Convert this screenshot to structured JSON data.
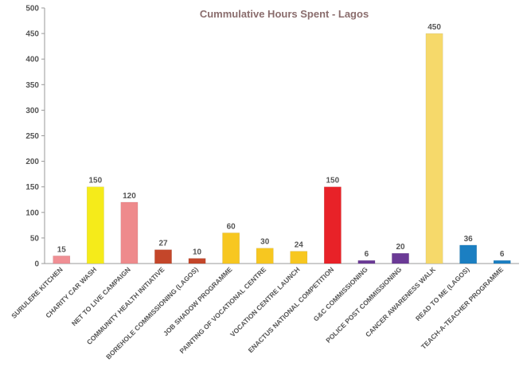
{
  "chart_data": {
    "type": "bar",
    "title": "Cummulative Hours Spent - Lagos",
    "xlabel": "",
    "ylabel": "",
    "ylim": [
      0,
      500
    ],
    "yticks": [
      0,
      50,
      100,
      150,
      200,
      250,
      300,
      350,
      400,
      450,
      500
    ],
    "grid": false,
    "legend": "none",
    "categories": [
      "SURULERE KITCHEN",
      "CHARITY CAR WASH",
      "NET TO LIVE CAMPAIGN",
      "COMMUNITY HEALTH INITIATIVE",
      "BOREHOLE COMMISSIONING (LAGOS)",
      "JOB SHADOW PROGRAMME",
      "PAINTING OF VOCATIONAL CENTRE",
      "VOCATION CENTRE LAUNCH",
      "ENACTUS NATIONAL COMPETITION",
      "G&C COMMISSIONING",
      "POLICE POST COMMISSIONING",
      "CANCER AWARENESS WALK",
      "READ TO ME (LAGOS)",
      "TEACH-A-TEACHER PROGRAMME"
    ],
    "values": [
      15,
      150,
      120,
      27,
      10,
      60,
      30,
      24,
      150,
      6,
      20,
      450,
      36,
      6
    ],
    "colors": [
      "#f08f94",
      "#f5eb1a",
      "#ee8a8c",
      "#c4462a",
      "#c4462a",
      "#f7c720",
      "#f7c720",
      "#f7c720",
      "#e82228",
      "#6b3a96",
      "#6b3a96",
      "#f6d96a",
      "#1b7fc2",
      "#1b7fc2"
    ]
  }
}
